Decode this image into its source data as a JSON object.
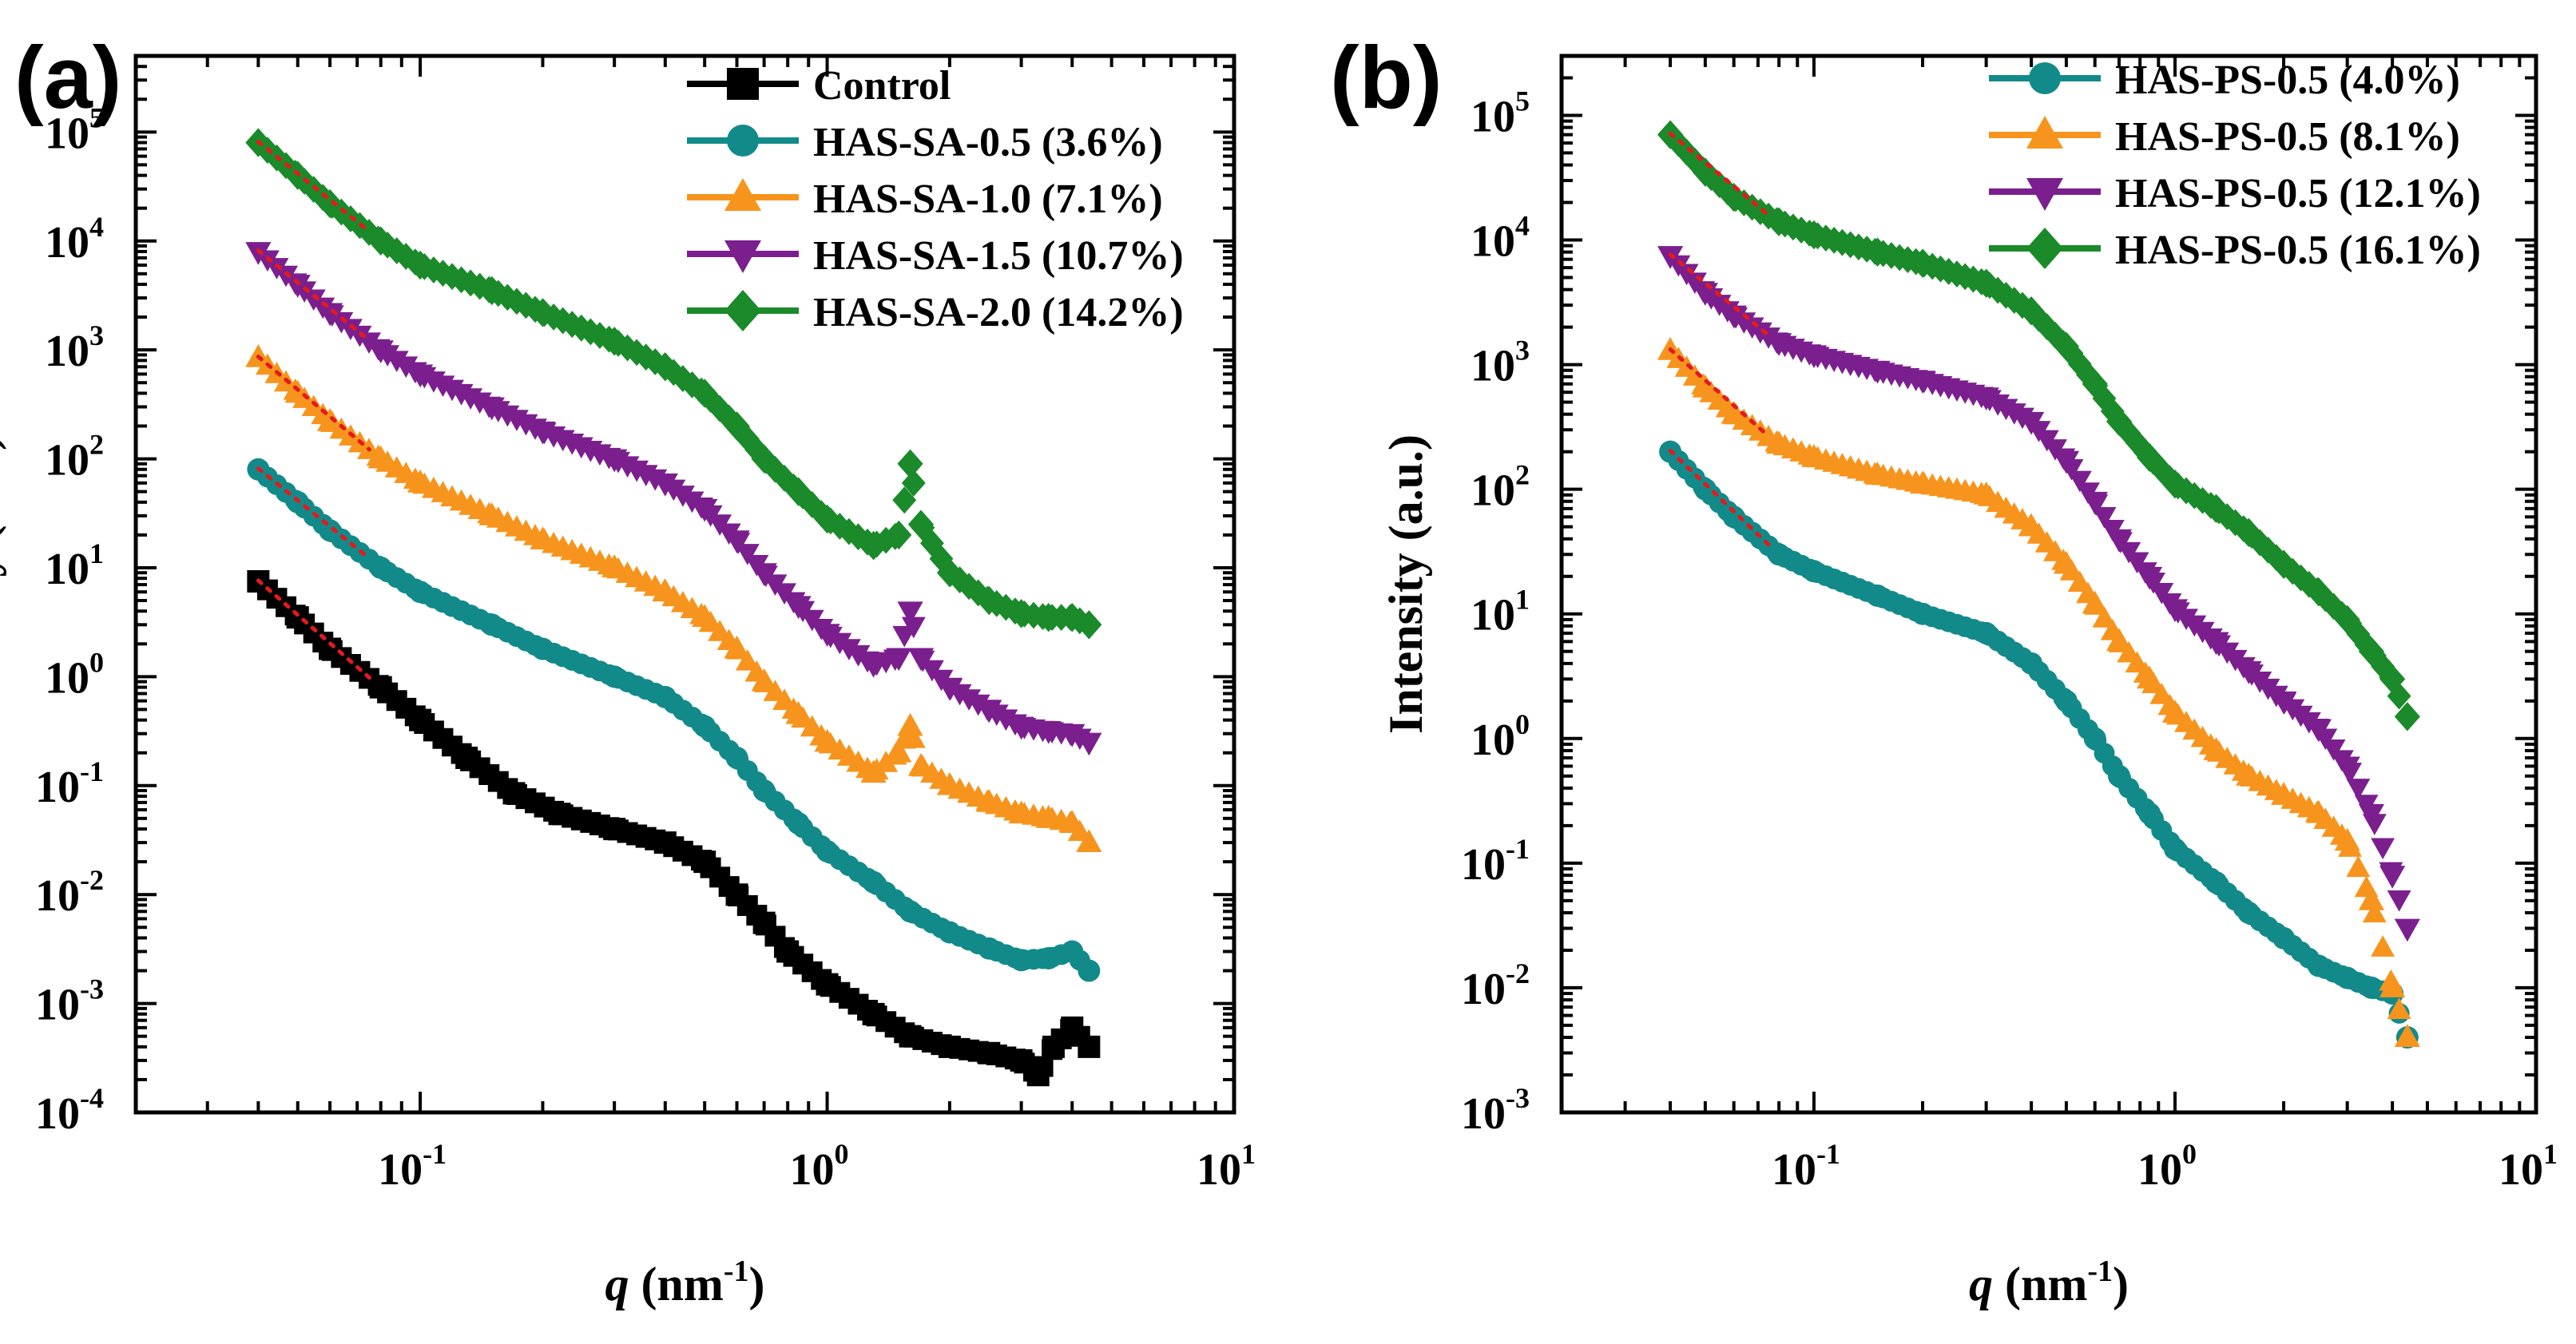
{
  "figure": {
    "description_free": true
  },
  "chart_data": [
    {
      "panel_label": "(a)",
      "type": "scatter",
      "title": "",
      "xscale": "log",
      "yscale": "log",
      "xlabel_symbol": "q",
      "xlabel_rest": " (nm",
      "xlabel_sup": "-1",
      "xlabel_close": ")",
      "ylabel": "Intensity (a.u.)",
      "xlim": [
        0.02,
        10
      ],
      "ylim": [
        0.0001,
        500000
      ],
      "x_ticks": [
        {
          "exp": "-1",
          "value": 0.1
        },
        {
          "exp": "0",
          "value": 1
        },
        {
          "exp": "1",
          "value": 10
        }
      ],
      "y_ticks": [
        {
          "exp": "-4",
          "value": 0.0001
        },
        {
          "exp": "-3",
          "value": 0.001
        },
        {
          "exp": "-2",
          "value": 0.01
        },
        {
          "exp": "-1",
          "value": 0.1
        },
        {
          "exp": "0",
          "value": 1
        },
        {
          "exp": "1",
          "value": 10
        },
        {
          "exp": "2",
          "value": 100
        },
        {
          "exp": "3",
          "value": 1000
        },
        {
          "exp": "4",
          "value": 10000
        },
        {
          "exp": "5",
          "value": 100000
        }
      ],
      "legend_position": "top-right",
      "series": [
        {
          "name": "Control",
          "marker": "square",
          "color": "#000000",
          "points": [
            [
              0.04,
              7.5
            ],
            [
              0.05,
              3.5
            ],
            [
              0.06,
              1.8
            ],
            [
              0.08,
              0.8
            ],
            [
              0.1,
              0.4
            ],
            [
              0.13,
              0.18
            ],
            [
              0.17,
              0.085
            ],
            [
              0.22,
              0.055
            ],
            [
              0.3,
              0.04
            ],
            [
              0.4,
              0.03
            ],
            [
              0.5,
              0.02
            ],
            [
              0.6,
              0.01
            ],
            [
              0.7,
              0.0055
            ],
            [
              0.8,
              0.003
            ],
            [
              1.0,
              0.0015
            ],
            [
              1.3,
              0.0008
            ],
            [
              1.6,
              0.0005
            ],
            [
              2.0,
              0.0004
            ],
            [
              2.5,
              0.00035
            ],
            [
              3.0,
              0.0003
            ],
            [
              3.3,
              0.00022
            ],
            [
              3.6,
              0.0004
            ],
            [
              4.0,
              0.0006
            ],
            [
              4.4,
              0.0004
            ]
          ]
        },
        {
          "name": "HAS-SA-0.5 (3.6%)",
          "marker": "circle",
          "color": "#138a8a",
          "points": [
            [
              0.04,
              80
            ],
            [
              0.05,
              40
            ],
            [
              0.06,
              22
            ],
            [
              0.08,
              10
            ],
            [
              0.1,
              6
            ],
            [
              0.15,
              3
            ],
            [
              0.2,
              1.8
            ],
            [
              0.3,
              1.0
            ],
            [
              0.4,
              0.65
            ],
            [
              0.5,
              0.35
            ],
            [
              0.6,
              0.18
            ],
            [
              0.7,
              0.09
            ],
            [
              0.85,
              0.045
            ],
            [
              1.0,
              0.025
            ],
            [
              1.3,
              0.013
            ],
            [
              1.6,
              0.007
            ],
            [
              2.0,
              0.0045
            ],
            [
              2.5,
              0.0032
            ],
            [
              3.0,
              0.0025
            ],
            [
              3.5,
              0.0026
            ],
            [
              4.0,
              0.003
            ],
            [
              4.4,
              0.002
            ]
          ]
        },
        {
          "name": "HAS-SA-1.0 (7.1%)",
          "marker": "triangle-up",
          "color": "#f7941d",
          "points": [
            [
              0.04,
              850
            ],
            [
              0.05,
              400
            ],
            [
              0.06,
              220
            ],
            [
              0.08,
              100
            ],
            [
              0.1,
              60
            ],
            [
              0.15,
              30
            ],
            [
              0.2,
              18
            ],
            [
              0.3,
              10
            ],
            [
              0.4,
              6
            ],
            [
              0.5,
              3.5
            ],
            [
              0.6,
              1.8
            ],
            [
              0.7,
              0.9
            ],
            [
              0.85,
              0.45
            ],
            [
              1.0,
              0.25
            ],
            [
              1.3,
              0.13
            ],
            [
              1.5,
              0.2
            ],
            [
              1.6,
              0.35
            ],
            [
              1.7,
              0.15
            ],
            [
              2.0,
              0.1
            ],
            [
              2.5,
              0.07
            ],
            [
              3.0,
              0.055
            ],
            [
              3.5,
              0.05
            ],
            [
              4.0,
              0.045
            ],
            [
              4.4,
              0.03
            ]
          ]
        },
        {
          "name": "HAS-SA-1.5 (10.7%)",
          "marker": "triangle-down",
          "color": "#7b1f8e",
          "points": [
            [
              0.04,
              8000
            ],
            [
              0.05,
              4000
            ],
            [
              0.06,
              2200
            ],
            [
              0.08,
              1000
            ],
            [
              0.1,
              600
            ],
            [
              0.15,
              300
            ],
            [
              0.2,
              180
            ],
            [
              0.3,
              100
            ],
            [
              0.4,
              60
            ],
            [
              0.5,
              35
            ],
            [
              0.6,
              18
            ],
            [
              0.7,
              9
            ],
            [
              0.85,
              4.5
            ],
            [
              1.0,
              2.5
            ],
            [
              1.3,
              1.3
            ],
            [
              1.5,
              1.5
            ],
            [
              1.6,
              4
            ],
            [
              1.7,
              1.5
            ],
            [
              2.0,
              0.8
            ],
            [
              2.5,
              0.5
            ],
            [
              3.0,
              0.35
            ],
            [
              3.5,
              0.32
            ],
            [
              4.0,
              0.3
            ],
            [
              4.4,
              0.25
            ]
          ]
        },
        {
          "name": "HAS-SA-2.0 (14.2%)",
          "marker": "diamond",
          "color": "#1b8a2a",
          "points": [
            [
              0.04,
              80000
            ],
            [
              0.05,
              40000
            ],
            [
              0.06,
              22000
            ],
            [
              0.08,
              10000
            ],
            [
              0.1,
              6000
            ],
            [
              0.15,
              3500
            ],
            [
              0.2,
              2200
            ],
            [
              0.3,
              1200
            ],
            [
              0.4,
              700
            ],
            [
              0.5,
              400
            ],
            [
              0.6,
              200
            ],
            [
              0.7,
              100
            ],
            [
              0.85,
              50
            ],
            [
              1.0,
              28
            ],
            [
              1.3,
              16
            ],
            [
              1.5,
              20
            ],
            [
              1.6,
              90
            ],
            [
              1.7,
              25
            ],
            [
              2.0,
              9
            ],
            [
              2.5,
              5
            ],
            [
              3.0,
              3.8
            ],
            [
              3.5,
              3.5
            ],
            [
              4.0,
              3.5
            ],
            [
              4.4,
              3
            ]
          ]
        }
      ],
      "fit_lines": [
        {
          "color": "#e41a1c",
          "x_range": [
            0.04,
            0.075
          ],
          "series": "all"
        }
      ]
    },
    {
      "panel_label": "(b)",
      "type": "scatter",
      "title": "",
      "xscale": "log",
      "yscale": "log",
      "xlabel_symbol": "q",
      "xlabel_rest": " (nm",
      "xlabel_sup": "-1",
      "xlabel_close": ")",
      "ylabel": "Intensity (a.u.)",
      "xlim": [
        0.02,
        10
      ],
      "ylim": [
        0.001,
        300000
      ],
      "x_ticks": [
        {
          "exp": "-1",
          "value": 0.1
        },
        {
          "exp": "0",
          "value": 1
        },
        {
          "exp": "1",
          "value": 10
        }
      ],
      "y_ticks": [
        {
          "exp": "-3",
          "value": 0.001
        },
        {
          "exp": "-2",
          "value": 0.01
        },
        {
          "exp": "-1",
          "value": 0.1
        },
        {
          "exp": "0",
          "value": 1
        },
        {
          "exp": "1",
          "value": 10
        },
        {
          "exp": "2",
          "value": 100
        },
        {
          "exp": "3",
          "value": 1000
        },
        {
          "exp": "4",
          "value": 10000
        },
        {
          "exp": "5",
          "value": 100000
        }
      ],
      "legend_position": "top-right",
      "series": [
        {
          "name": "HAS-PS-0.5 (4.0%)",
          "marker": "circle",
          "color": "#138a8a",
          "points": [
            [
              0.04,
              200
            ],
            [
              0.05,
              100
            ],
            [
              0.06,
              60
            ],
            [
              0.08,
              30
            ],
            [
              0.1,
              22
            ],
            [
              0.15,
              14
            ],
            [
              0.2,
              10
            ],
            [
              0.3,
              7
            ],
            [
              0.4,
              4
            ],
            [
              0.5,
              2
            ],
            [
              0.6,
              1
            ],
            [
              0.7,
              0.5
            ],
            [
              0.85,
              0.25
            ],
            [
              1.0,
              0.13
            ],
            [
              1.3,
              0.07
            ],
            [
              1.6,
              0.04
            ],
            [
              2.0,
              0.025
            ],
            [
              2.5,
              0.015
            ],
            [
              3.0,
              0.012
            ],
            [
              3.5,
              0.01
            ],
            [
              4.0,
              0.009
            ],
            [
              4.4,
              0.004
            ]
          ]
        },
        {
          "name": "HAS-PS-0.5 (8.1%)",
          "marker": "triangle-up",
          "color": "#f7941d",
          "points": [
            [
              0.04,
              1300
            ],
            [
              0.05,
              650
            ],
            [
              0.06,
              400
            ],
            [
              0.08,
              230
            ],
            [
              0.1,
              180
            ],
            [
              0.15,
              130
            ],
            [
              0.2,
              110
            ],
            [
              0.3,
              90
            ],
            [
              0.4,
              50
            ],
            [
              0.5,
              25
            ],
            [
              0.6,
              12
            ],
            [
              0.7,
              6
            ],
            [
              0.85,
              3
            ],
            [
              1.0,
              1.6
            ],
            [
              1.3,
              0.8
            ],
            [
              1.6,
              0.5
            ],
            [
              2.0,
              0.35
            ],
            [
              2.5,
              0.25
            ],
            [
              3.0,
              0.15
            ],
            [
              3.5,
              0.05
            ],
            [
              4.0,
              0.01
            ],
            [
              4.4,
              0.004
            ]
          ]
        },
        {
          "name": "HAS-PS-0.5 (12.1%)",
          "marker": "triangle-down",
          "color": "#7b1f8e",
          "points": [
            [
              0.04,
              7500
            ],
            [
              0.05,
              3800
            ],
            [
              0.06,
              2500
            ],
            [
              0.08,
              1500
            ],
            [
              0.1,
              1200
            ],
            [
              0.15,
              900
            ],
            [
              0.2,
              750
            ],
            [
              0.3,
              550
            ],
            [
              0.4,
              350
            ],
            [
              0.5,
              170
            ],
            [
              0.6,
              80
            ],
            [
              0.7,
              40
            ],
            [
              0.85,
              20
            ],
            [
              1.0,
              11
            ],
            [
              1.3,
              6
            ],
            [
              1.6,
              3.5
            ],
            [
              2.0,
              2
            ],
            [
              2.5,
              1.2
            ],
            [
              3.0,
              0.6
            ],
            [
              3.5,
              0.25
            ],
            [
              4.0,
              0.08
            ],
            [
              4.4,
              0.03
            ]
          ]
        },
        {
          "name": "HAS-PS-0.5 (16.1%)",
          "marker": "diamond",
          "color": "#1b8a2a",
          "points": [
            [
              0.04,
              70000
            ],
            [
              0.05,
              35000
            ],
            [
              0.06,
              22000
            ],
            [
              0.08,
              14000
            ],
            [
              0.1,
              11000
            ],
            [
              0.15,
              8000
            ],
            [
              0.2,
              6500
            ],
            [
              0.3,
              4500
            ],
            [
              0.4,
              2700
            ],
            [
              0.5,
              1400
            ],
            [
              0.6,
              700
            ],
            [
              0.7,
              350
            ],
            [
              0.85,
              180
            ],
            [
              1.0,
              110
            ],
            [
              1.3,
              70
            ],
            [
              1.6,
              45
            ],
            [
              2.0,
              25
            ],
            [
              2.5,
              15
            ],
            [
              3.0,
              9
            ],
            [
              3.5,
              5
            ],
            [
              4.0,
              3
            ],
            [
              4.4,
              1.5
            ]
          ]
        }
      ],
      "fit_lines": [
        {
          "color": "#e41a1c",
          "x_range": [
            0.04,
            0.075
          ],
          "series": "all"
        }
      ]
    }
  ]
}
